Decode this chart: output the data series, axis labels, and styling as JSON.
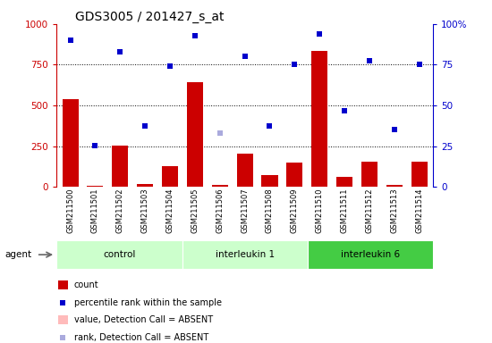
{
  "title": "GDS3005 / 201427_s_at",
  "samples": [
    "GSM211500",
    "GSM211501",
    "GSM211502",
    "GSM211503",
    "GSM211504",
    "GSM211505",
    "GSM211506",
    "GSM211507",
    "GSM211508",
    "GSM211509",
    "GSM211510",
    "GSM211511",
    "GSM211512",
    "GSM211513",
    "GSM211514"
  ],
  "groups": [
    {
      "label": "control",
      "start": 0,
      "end": 5,
      "color": "#ccffcc"
    },
    {
      "label": "interleukin 1",
      "start": 5,
      "end": 10,
      "color": "#ccffcc"
    },
    {
      "label": "interleukin 6",
      "start": 10,
      "end": 15,
      "color": "#44cc44"
    }
  ],
  "count": [
    540,
    5,
    255,
    20,
    130,
    645,
    15,
    205,
    75,
    150,
    835,
    60,
    155,
    15,
    155
  ],
  "count_absent": [
    false,
    false,
    false,
    false,
    false,
    false,
    false,
    false,
    false,
    false,
    false,
    false,
    false,
    false,
    false
  ],
  "percentile_rank": [
    900,
    255,
    830,
    375,
    740,
    930,
    330,
    800,
    375,
    755,
    940,
    470,
    775,
    355,
    755
  ],
  "rank_absent": [
    false,
    false,
    false,
    false,
    false,
    false,
    true,
    false,
    false,
    false,
    false,
    false,
    false,
    false,
    false
  ],
  "value_absent": [
    false,
    false,
    false,
    false,
    false,
    false,
    false,
    false,
    true,
    false,
    false,
    false,
    false,
    false,
    false
  ],
  "ylim_left": [
    0,
    1000
  ],
  "ylim_right": [
    0,
    100
  ],
  "yticks_left": [
    0,
    250,
    500,
    750,
    1000
  ],
  "yticks_right": [
    0,
    25,
    50,
    75,
    100
  ],
  "agent_label": "agent",
  "xtick_bg_color": "#cccccc",
  "plot_bg_color": "#ffffff",
  "bar_color": "#cc0000",
  "bar_absent_color": "#ffbbbb",
  "dot_color": "#0000cc",
  "dot_absent_color": "#aaaadd",
  "left_axis_color": "#cc0000",
  "right_axis_color": "#0000cc",
  "legend_items": [
    {
      "label": "count",
      "color": "#cc0000",
      "type": "bar"
    },
    {
      "label": "percentile rank within the sample",
      "color": "#0000cc",
      "type": "dot"
    },
    {
      "label": "value, Detection Call = ABSENT",
      "color": "#ffbbbb",
      "type": "bar"
    },
    {
      "label": "rank, Detection Call = ABSENT",
      "color": "#aaaadd",
      "type": "dot"
    }
  ]
}
